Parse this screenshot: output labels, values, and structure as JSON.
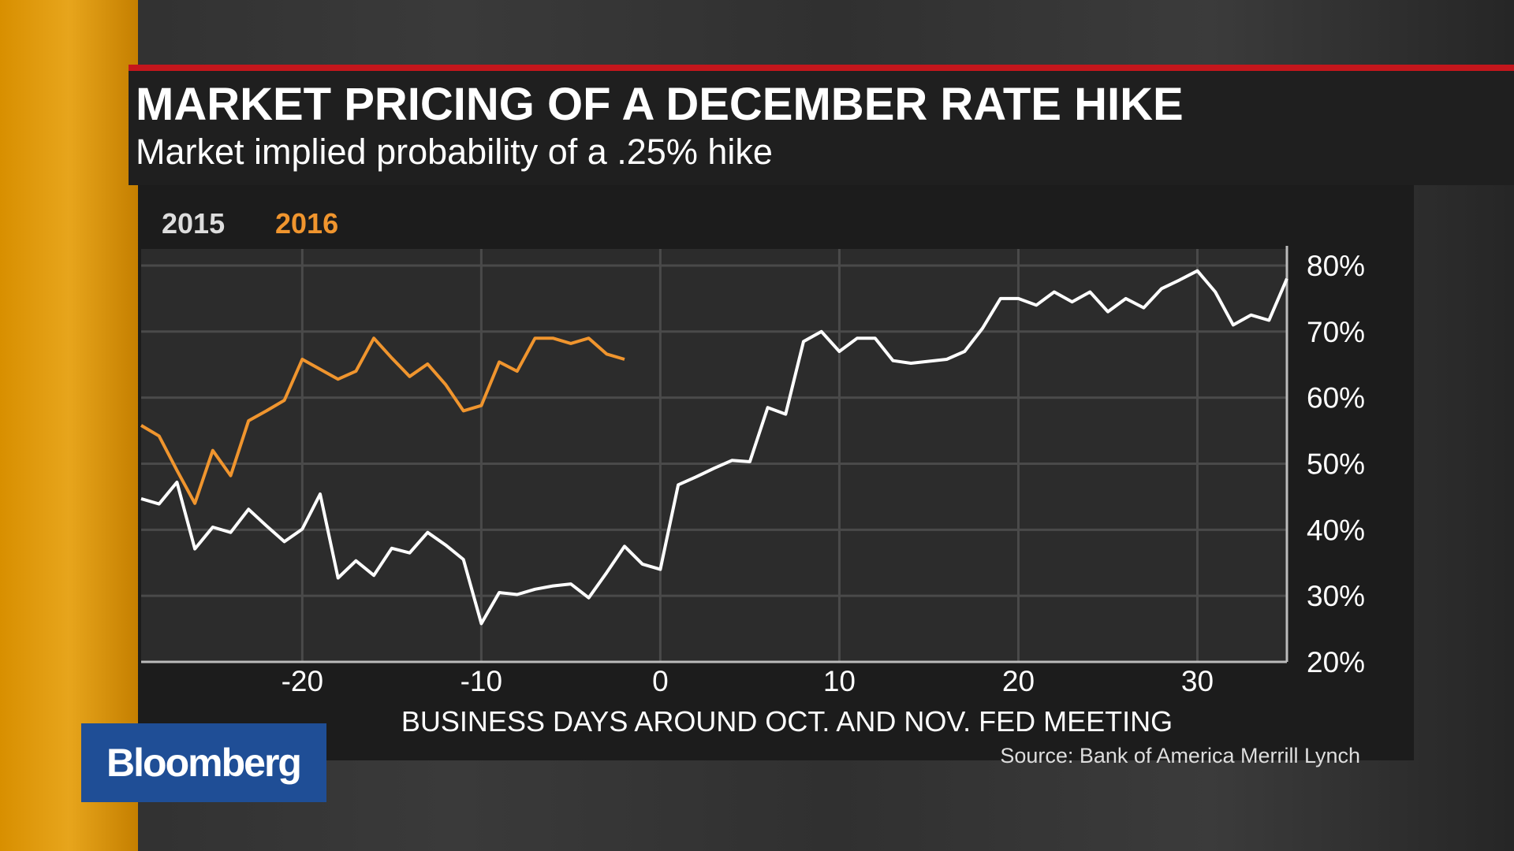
{
  "chart_data": {
    "type": "line",
    "title": "MARKET PRICING OF A DECEMBER RATE HIKE",
    "subtitle": "Market implied probability of a .25% hike",
    "x_label": "BUSINESS DAYS AROUND OCT. AND NOV. FED MEETING",
    "source": "Source: Bank of America Merrill Lynch",
    "brand": "Bloomberg",
    "x": [
      -29,
      -28,
      -27,
      -26,
      -25,
      -24,
      -23,
      -22,
      -21,
      -20,
      -19,
      -18,
      -17,
      -16,
      -15,
      -14,
      -13,
      -12,
      -11,
      -10,
      -9,
      -8,
      -7,
      -6,
      -5,
      -4,
      -3,
      -2,
      -1,
      0,
      1,
      2,
      3,
      4,
      5,
      6,
      7,
      8,
      9,
      10,
      11,
      12,
      13,
      14,
      15,
      16,
      17,
      18,
      19,
      20,
      21,
      22,
      23,
      24,
      25,
      26,
      27,
      28,
      29,
      30,
      31,
      32,
      33,
      34,
      35
    ],
    "series": [
      {
        "name": "2015",
        "color": "#ffffff",
        "values": [
          44.7,
          43.9,
          47.2,
          37.1,
          40.4,
          39.6,
          43.1,
          40.6,
          38.2,
          40.1,
          45.4,
          32.7,
          35.3,
          33.1,
          37.2,
          36.5,
          39.6,
          37.7,
          35.5,
          25.8,
          30.5,
          30.2,
          31.0,
          31.5,
          31.8,
          29.7,
          33.5,
          37.5,
          34.8,
          34.0,
          46.8,
          48.0,
          49.3,
          50.5,
          50.3,
          58.5,
          57.5,
          68.5,
          70.0,
          67.0,
          69.0,
          69.0,
          65.6,
          65.2,
          65.5,
          65.8,
          67.0,
          70.5,
          75.0,
          75.0,
          74.0,
          76.0,
          74.5,
          76.0,
          73.0,
          75.0,
          73.6,
          76.5,
          77.8,
          79.2,
          76.0,
          71.0,
          72.5,
          71.7,
          78.0
        ]
      },
      {
        "name": "2016",
        "color": "#f0952e",
        "values": [
          55.8,
          54.2,
          49.0,
          44.0,
          52.0,
          48.2,
          56.5,
          58.0,
          59.6,
          65.8,
          64.3,
          62.8,
          64.0,
          69.0,
          66.0,
          63.2,
          65.1,
          62.0,
          58.0,
          58.8,
          65.4,
          64.0,
          69.0,
          69.0,
          68.2,
          69.0,
          66.6,
          65.8,
          null,
          null,
          null,
          null,
          null,
          null,
          null,
          null,
          null,
          null,
          null,
          null,
          null,
          null,
          null,
          null,
          null,
          null,
          null,
          null,
          null,
          null,
          null,
          null,
          null,
          null,
          null,
          null,
          null,
          null,
          null,
          null,
          null,
          null,
          null,
          null,
          null
        ]
      }
    ],
    "xlim": [
      -29,
      35
    ],
    "xticks": [
      -20,
      -10,
      0,
      10,
      20,
      30
    ],
    "ylim": [
      20,
      82.5
    ],
    "yticks": [
      {
        "value": 20,
        "label": "20%"
      },
      {
        "value": 30,
        "label": "30%"
      },
      {
        "value": 40,
        "label": "40%"
      },
      {
        "value": 50,
        "label": "50%"
      },
      {
        "value": 60,
        "label": "60%"
      },
      {
        "value": 70,
        "label": "70%"
      },
      {
        "value": 80,
        "label": "80%"
      }
    ],
    "grid": true
  }
}
